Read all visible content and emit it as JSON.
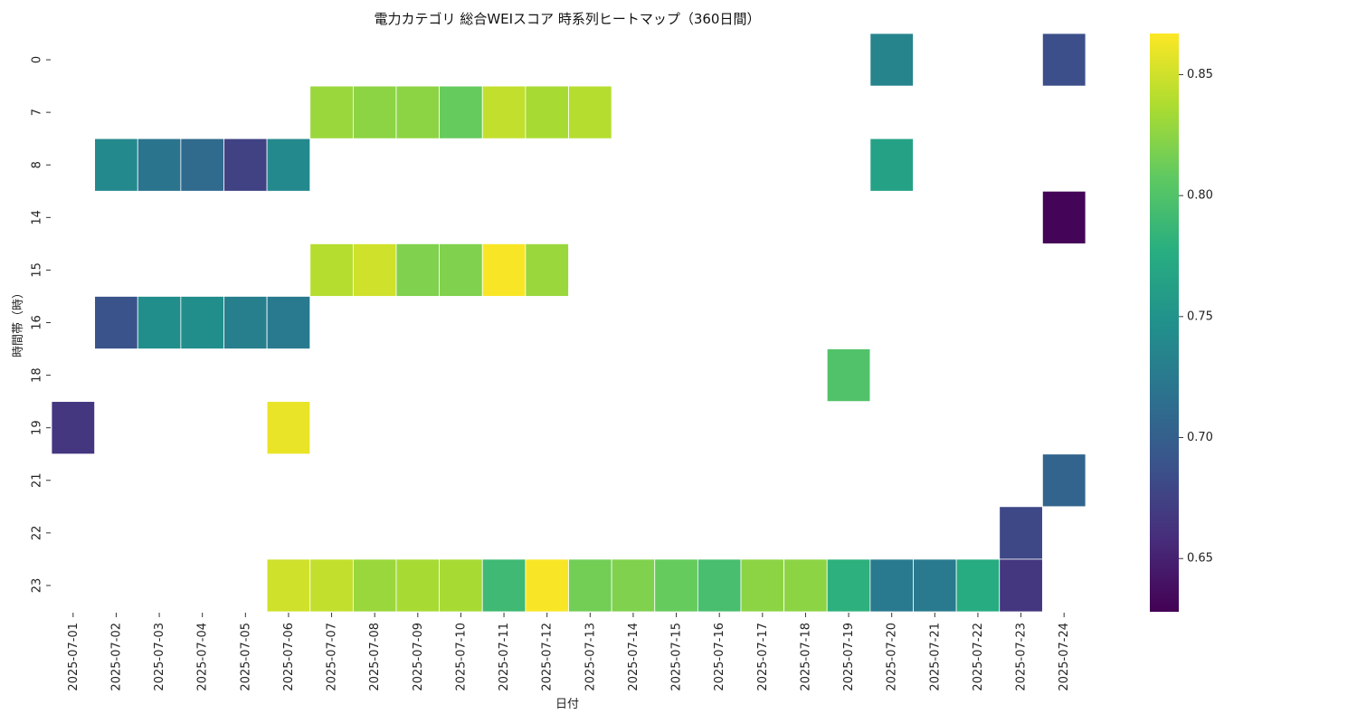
{
  "chart_data": {
    "type": "heatmap",
    "title": "電力カテゴリ 総合WEIスコア 時系列ヒートマップ（360日間）",
    "xlabel": "日付",
    "ylabel": "時間帯（時）",
    "x_categories": [
      "2025-07-01",
      "2025-07-02",
      "2025-07-03",
      "2025-07-04",
      "2025-07-05",
      "2025-07-06",
      "2025-07-07",
      "2025-07-08",
      "2025-07-09",
      "2025-07-10",
      "2025-07-11",
      "2025-07-12",
      "2025-07-13",
      "2025-07-14",
      "2025-07-15",
      "2025-07-16",
      "2025-07-17",
      "2025-07-18",
      "2025-07-19",
      "2025-07-20",
      "2025-07-21",
      "2025-07-22",
      "2025-07-23",
      "2025-07-24"
    ],
    "y_categories": [
      "0",
      "7",
      "8",
      "14",
      "15",
      "16",
      "18",
      "19",
      "21",
      "22",
      "23"
    ],
    "values": [
      [
        null,
        null,
        null,
        null,
        null,
        null,
        null,
        null,
        null,
        null,
        null,
        null,
        null,
        null,
        null,
        null,
        null,
        null,
        null,
        0.735,
        null,
        null,
        null,
        0.685
      ],
      [
        null,
        null,
        null,
        null,
        null,
        null,
        0.83,
        0.825,
        0.825,
        0.81,
        0.845,
        0.835,
        0.84,
        null,
        null,
        null,
        null,
        null,
        null,
        null,
        null,
        null,
        null,
        null
      ],
      [
        null,
        0.74,
        0.72,
        0.71,
        0.675,
        0.74,
        null,
        null,
        null,
        null,
        null,
        null,
        null,
        null,
        null,
        null,
        null,
        null,
        null,
        0.765,
        null,
        null,
        null,
        null
      ],
      [
        null,
        null,
        null,
        null,
        null,
        null,
        null,
        null,
        null,
        null,
        null,
        null,
        null,
        null,
        null,
        null,
        null,
        null,
        null,
        null,
        null,
        null,
        null,
        0.63
      ],
      [
        null,
        null,
        null,
        null,
        null,
        null,
        0.84,
        0.85,
        0.82,
        0.82,
        0.865,
        0.83,
        null,
        null,
        null,
        null,
        null,
        null,
        null,
        null,
        null,
        null,
        null,
        null
      ],
      [
        null,
        0.69,
        0.745,
        0.745,
        0.73,
        0.725,
        null,
        null,
        null,
        null,
        null,
        null,
        null,
        null,
        null,
        null,
        null,
        null,
        null,
        null,
        null,
        null,
        null,
        null
      ],
      [
        null,
        null,
        null,
        null,
        null,
        null,
        null,
        null,
        null,
        null,
        null,
        null,
        null,
        null,
        null,
        null,
        null,
        null,
        0.8,
        null,
        null,
        null,
        null,
        null
      ],
      [
        0.665,
        null,
        null,
        null,
        null,
        0.86,
        null,
        null,
        null,
        null,
        null,
        null,
        null,
        null,
        null,
        null,
        null,
        null,
        null,
        null,
        null,
        null,
        null,
        null
      ],
      [
        null,
        null,
        null,
        null,
        null,
        null,
        null,
        null,
        null,
        null,
        null,
        null,
        null,
        null,
        null,
        null,
        null,
        null,
        null,
        null,
        null,
        null,
        null,
        0.705
      ],
      [
        null,
        null,
        null,
        null,
        null,
        null,
        null,
        null,
        null,
        null,
        null,
        null,
        null,
        null,
        null,
        null,
        null,
        null,
        null,
        null,
        null,
        null,
        0.68,
        null
      ],
      [
        null,
        null,
        null,
        null,
        null,
        0.85,
        0.845,
        0.83,
        0.835,
        0.835,
        0.79,
        0.865,
        0.815,
        0.82,
        0.81,
        0.795,
        0.825,
        0.825,
        0.78,
        0.725,
        0.725,
        0.775,
        0.665,
        null
      ]
    ],
    "colormap": "viridis",
    "color_range": [
      0.628,
      0.867
    ],
    "colorbar_ticks": [
      0.65,
      0.7,
      0.75,
      0.8,
      0.85
    ],
    "colorbar_tick_labels": [
      "0.65",
      "0.70",
      "0.75",
      "0.80",
      "0.85"
    ],
    "grid": false,
    "cell_border_color": "#ffffff"
  }
}
